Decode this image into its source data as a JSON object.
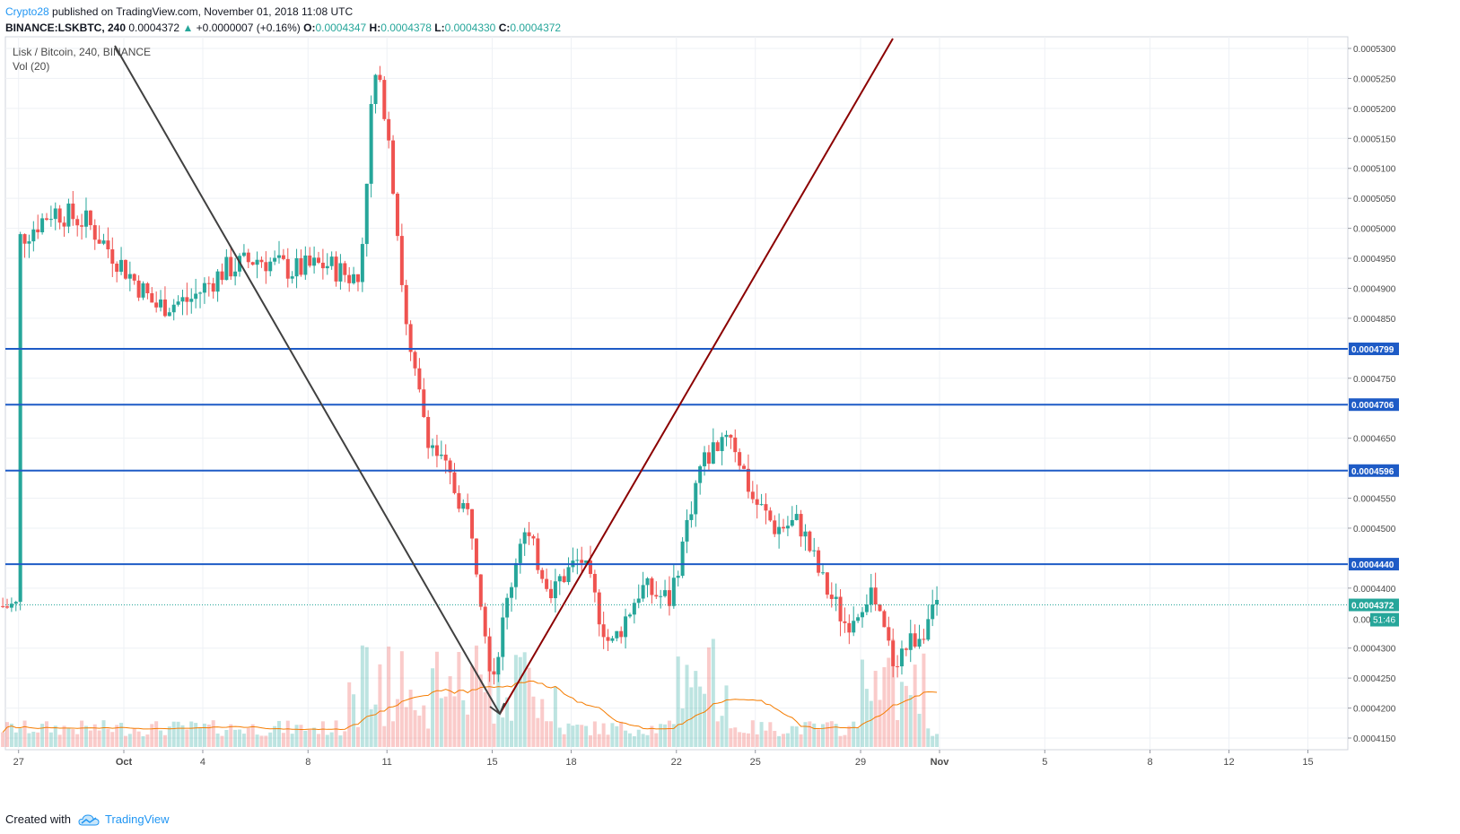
{
  "header": {
    "author": "Crypto28",
    "published": "published on TradingView.com, November 01, 2018 11:08 UTC"
  },
  "quote": {
    "symbol": "BINANCE:LSKBTC, 240",
    "price": "0.0004372",
    "arrow": "▲",
    "change": "+0.0000007 (+0.16%)",
    "o_label": "O:",
    "o": "0.0004347",
    "h_label": "H:",
    "h": "0.0004378",
    "l_label": "L:",
    "l": "0.0004330",
    "c_label": "C:",
    "c": "0.0004372"
  },
  "legend": {
    "pair": "Lisk / Bitcoin, 240, BINANCE",
    "indicator": "Vol (20)"
  },
  "footer": {
    "created_with": "Created with",
    "brand": "TradingView"
  },
  "colors": {
    "up": "#26a69a",
    "down": "#ef5350",
    "level": "#1e5bc6",
    "trend_down": "#404040",
    "trend_up": "#8b0000",
    "ma": "#f57c00"
  },
  "chart_data": {
    "type": "candlestick",
    "price_axis": {
      "ticks": [
        "0.0005300",
        "0.0005250",
        "0.0005200",
        "0.0005150",
        "0.0005100",
        "0.0005050",
        "0.0005000",
        "0.0004950",
        "0.0004900",
        "0.0004850",
        "0.0004750",
        "0.0004650",
        "0.0004550",
        "0.0004500",
        "0.0004400",
        "0.0004300",
        "0.0004250",
        "0.0004200",
        "0.0004150"
      ],
      "ylim": [
        0.000413,
        0.000532
      ]
    },
    "time_axis": {
      "ticks": [
        "27",
        "Oct",
        "4",
        "8",
        "11",
        "15",
        "18",
        "22",
        "25",
        "29",
        "Nov",
        "5",
        "8",
        "12",
        "15"
      ]
    },
    "levels": [
      {
        "value": "0.0004799"
      },
      {
        "value": "0.0004706"
      },
      {
        "value": "0.0004596"
      },
      {
        "value": "0.0004440"
      }
    ],
    "last_price": {
      "value": "0.0004372",
      "countdown": "51:46"
    },
    "hidden_tick": "0.00",
    "trendlines": [
      {
        "name": "downtrend",
        "from": [
          "Sep 30",
          "0.000532"
        ],
        "to": [
          "Oct 15",
          "0.0004195"
        ]
      },
      {
        "name": "uptrend",
        "from": [
          "Oct 15",
          "0.0004195"
        ],
        "to": [
          "Oct 23",
          "0.000532"
        ]
      }
    ],
    "segments": [
      {
        "from": "Sep 26",
        "to": "Oct 10",
        "start": 0.000493,
        "trend": [
          0.000498,
          0.000503,
          0.000501,
          0.000494,
          0.000487,
          0.000488,
          0.000493,
          0.000495,
          0.000493,
          0.000494,
          0.000491
        ],
        "vol": "low"
      },
      {
        "from": "Oct 10",
        "to": "Oct 11",
        "peak": 0.000526
      },
      {
        "from": "Oct 11",
        "to": "Oct 15",
        "trend": [
          0.000519,
          0.00048,
          0.000465,
          0.000458,
          0.000451,
          0.000425
        ],
        "low": 0.000421
      },
      {
        "from": "Oct 15",
        "to": "Oct 24",
        "trend": [
          0.000425,
          0.00045,
          0.00044,
          0.000445,
          0.00043,
          0.00044,
          0.000438,
          0.00046,
          0.000467
        ],
        "high": 0.000475
      },
      {
        "from": "Oct 24",
        "to": "Nov 1",
        "trend": [
          0.000467,
          0.000455,
          0.00045,
          0.000451,
          0.000441,
          0.000434,
          0.00044,
          0.000428,
          0.000432,
          0.000437
        ],
        "low": 0.000423
      }
    ]
  }
}
